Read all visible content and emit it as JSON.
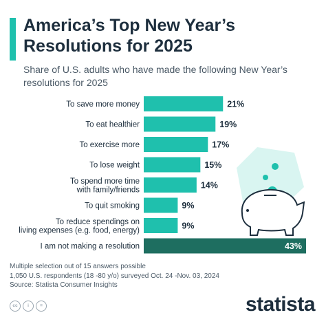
{
  "header": {
    "title": "America’s Top New Year’s Resolutions for 2025",
    "subtitle": "Share of U.S. adults who have made the following New Year’s resolutions for 2025"
  },
  "footer": {
    "note": "Multiple selection out of 15 answers possible",
    "respondents": "1,050 U.S. respondents (18 -80 y/o) surveyed Oct. 24 -Nov. 03, 2024",
    "source": "Source: Statista Consumer Insights",
    "logo": "statista",
    "license_icons": [
      "cc-icon",
      "by-icon",
      "equals-icon"
    ]
  },
  "colors": {
    "primary_bar": "#1fc0ad",
    "highlight_bar": "#1e6e60",
    "title": "#1d2e3d"
  },
  "chart_data": {
    "type": "bar",
    "orientation": "horizontal",
    "categories": [
      [
        "To save more money"
      ],
      [
        "To eat healthier"
      ],
      [
        "To exercise more"
      ],
      [
        "To lose weight"
      ],
      [
        "To spend more time",
        "with family/friends"
      ],
      [
        "To quit smoking"
      ],
      [
        "To reduce spendings on",
        "living expenses (e.g. food, energy)"
      ],
      [
        "I am not making a resolution"
      ]
    ],
    "values": [
      21,
      19,
      17,
      15,
      14,
      9,
      9,
      43
    ],
    "value_labels": [
      "21%",
      "19%",
      "17%",
      "15%",
      "14%",
      "9%",
      "9%",
      "43%"
    ],
    "highlighted_index": 7,
    "unit": "%",
    "xlim": [
      0,
      43
    ],
    "grid": false,
    "legend": "none"
  }
}
